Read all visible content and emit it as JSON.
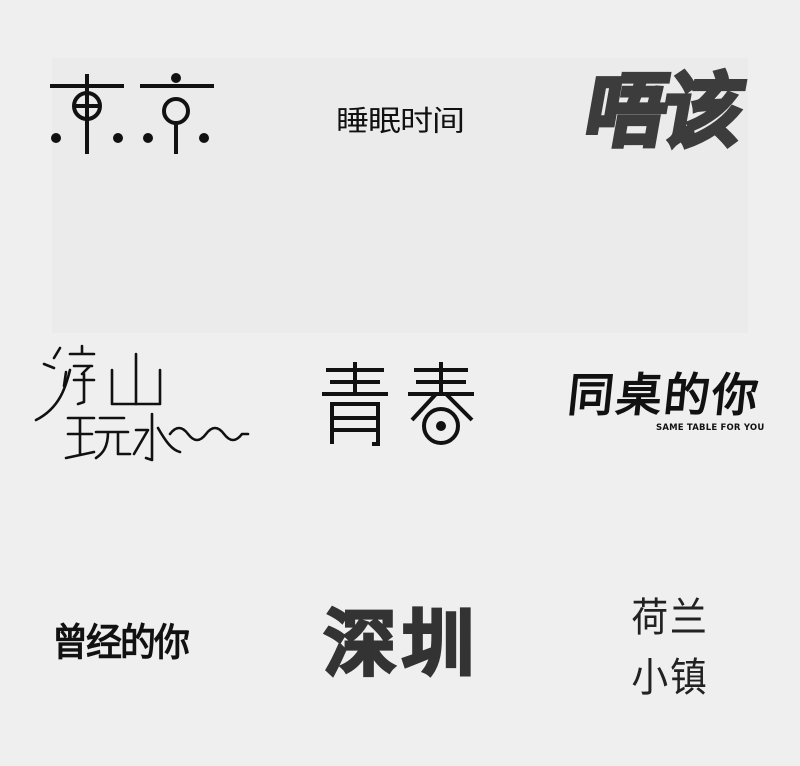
{
  "logos": {
    "tokyo": {
      "text": "東京"
    },
    "sleep_time": {
      "text": "睡眠时间"
    },
    "mgoi": {
      "text": "唔该"
    },
    "youshan_wanshui": {
      "text": "游山玩水"
    },
    "qingchun": {
      "text": "青春"
    },
    "tongzhuo": {
      "text": "同桌的你",
      "subtitle": "SAME TABLE FOR YOU"
    },
    "cengjing": {
      "text": "曾经的你"
    },
    "shenzhen": {
      "text": "深圳"
    },
    "helan": {
      "line1": "荷兰",
      "line2": "小镇"
    }
  },
  "colors": {
    "background": "#efefef",
    "panel": "#ebebeb",
    "ink": "#111111",
    "gray_ink": "#3c3c3c"
  }
}
